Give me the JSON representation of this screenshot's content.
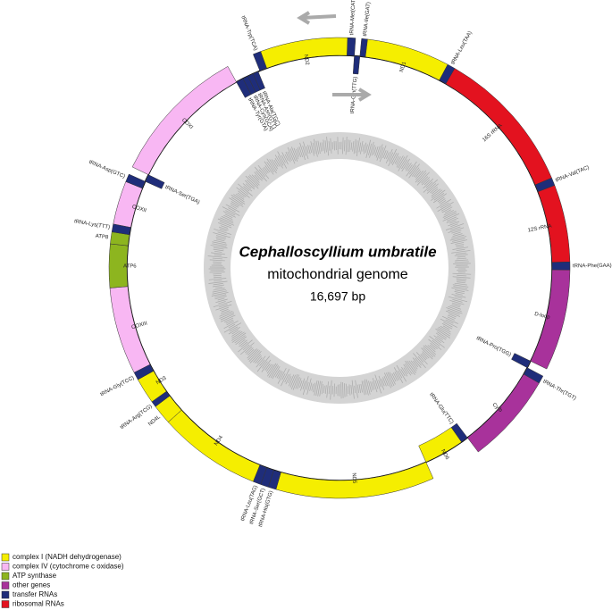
{
  "title": "Cephalloscyllium umbratile",
  "subtitle": "mitochondrial genome",
  "size": "16,697 bp",
  "genes": [
    {
      "label": "tRNA-Met(CAT)",
      "color": "#1f2d7a",
      "strand": "outer"
    },
    {
      "label": "tRNA-Ile(GAT)",
      "color": "#1f2d7a",
      "strand": "outer"
    },
    {
      "label": "tRNA-Gln(TTG)",
      "color": "#1f2d7a",
      "strand": "inner"
    },
    {
      "label": "ND1",
      "color": "#f5ee00",
      "strand": "outer"
    },
    {
      "label": "tRNA-Leu(TAA)",
      "color": "#1f2d7a",
      "strand": "outer"
    },
    {
      "label": "16S rRNA",
      "color": "#e3121f",
      "strand": "outer"
    },
    {
      "label": "tRNA-Val(TAC)",
      "color": "#1f2d7a",
      "strand": "outer"
    },
    {
      "label": "12S rRNA",
      "color": "#e3121f",
      "strand": "outer"
    },
    {
      "label": "tRNA-Phe(GAA)",
      "color": "#1f2d7a",
      "strand": "outer"
    },
    {
      "label": "D-loop",
      "color": "#a8329b",
      "strand": "outer"
    },
    {
      "label": "tRNA-Pro(TGG)",
      "color": "#1f2d7a",
      "strand": "inner"
    },
    {
      "label": "tRNA-Thr(TGT)",
      "color": "#1f2d7a",
      "strand": "outer"
    },
    {
      "label": "Cytb",
      "color": "#a8329b",
      "strand": "outer"
    },
    {
      "label": "tRNA-Glu(TTC)",
      "color": "#1f2d7a",
      "strand": "inner"
    },
    {
      "label": "ND6",
      "color": "#f5ee00",
      "strand": "inner"
    },
    {
      "label": "ND5",
      "color": "#f5ee00",
      "strand": "outer"
    },
    {
      "label": "tRNA-His(GTG)",
      "color": "#1f2d7a",
      "strand": "outer"
    },
    {
      "label": "tRNA-Ser(GCT)",
      "color": "#1f2d7a",
      "strand": "outer"
    },
    {
      "label": "tRNA-Leu(TAG)",
      "color": "#1f2d7a",
      "strand": "outer"
    },
    {
      "label": "ND4",
      "color": "#f5ee00",
      "strand": "outer"
    },
    {
      "label": "ND4L",
      "color": "#f5ee00",
      "strand": "outer"
    },
    {
      "label": "tRNA-Arg(TCG)",
      "color": "#1f2d7a",
      "strand": "outer"
    },
    {
      "label": "ND3",
      "color": "#f5ee00",
      "strand": "outer"
    },
    {
      "label": "tRNA-Gly(TCC)",
      "color": "#1f2d7a",
      "strand": "outer"
    },
    {
      "label": "COXIII",
      "color": "#f8b7f3",
      "strand": "outer"
    },
    {
      "label": "ATP6",
      "color": "#8db51f",
      "strand": "outer"
    },
    {
      "label": "ATP8",
      "color": "#8db51f",
      "strand": "outer"
    },
    {
      "label": "tRNA-Lys(TTT)",
      "color": "#1f2d7a",
      "strand": "outer"
    },
    {
      "label": "COXII",
      "color": "#f8b7f3",
      "strand": "outer"
    },
    {
      "label": "tRNA-Asp(GTC)",
      "color": "#1f2d7a",
      "strand": "outer"
    },
    {
      "label": "tRNA-Ser(TGA)",
      "color": "#1f2d7a",
      "strand": "inner"
    },
    {
      "label": "COXI",
      "color": "#f8b7f3",
      "strand": "outer"
    },
    {
      "label": "tRNA-Tyr(GTA)",
      "color": "#1f2d7a",
      "strand": "inner"
    },
    {
      "label": "tRNA-Cys(GCA)",
      "color": "#1f2d7a",
      "strand": "inner"
    },
    {
      "label": "tRNA-Asn(GTT)",
      "color": "#1f2d7a",
      "strand": "inner"
    },
    {
      "label": "tRNA-Ala(TGC)",
      "color": "#1f2d7a",
      "strand": "inner"
    },
    {
      "label": "tRNA-Trp(TCA)",
      "color": "#1f2d7a",
      "strand": "outer"
    },
    {
      "label": "ND2",
      "color": "#f5ee00",
      "strand": "outer"
    }
  ],
  "legend": [
    {
      "label": "complex I (NADH dehydrogenase)",
      "color": "#f5ee00"
    },
    {
      "label": "complex IV (cytochrome c oxidase)",
      "color": "#f8b7f3"
    },
    {
      "label": "ATP synthase",
      "color": "#8db51f"
    },
    {
      "label": "other genes",
      "color": "#a8329b"
    },
    {
      "label": "transfer RNAs",
      "color": "#1f2d7a"
    },
    {
      "label": "ribosomal RNAs",
      "color": "#e3121f"
    }
  ]
}
